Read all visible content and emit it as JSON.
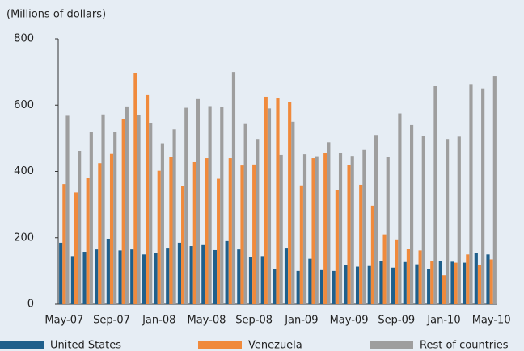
{
  "chart_data": {
    "type": "bar",
    "y_label": "(Millions of dollars)",
    "categories": [
      "May-07",
      null,
      null,
      null,
      "Sep-07",
      null,
      null,
      null,
      "Jan-08",
      null,
      null,
      null,
      "May-08",
      null,
      null,
      null,
      "Sep-08",
      null,
      null,
      null,
      "Jan-09",
      null,
      null,
      null,
      "May-09",
      null,
      null,
      null,
      "Sep-09",
      null,
      null,
      null,
      "Jan-10",
      null,
      null,
      null,
      "May-10"
    ],
    "series": [
      {
        "name": "United States",
        "color": "#1f5f8b",
        "values": [
          185,
          145,
          158,
          165,
          197,
          162,
          165,
          150,
          155,
          170,
          185,
          175,
          178,
          163,
          190,
          165,
          142,
          145,
          107,
          170,
          100,
          137,
          105,
          100,
          118,
          113,
          115,
          130,
          110,
          127,
          120,
          107,
          130,
          128,
          125,
          155,
          150
        ]
      },
      {
        "name": "Venezuela",
        "color": "#f08a3c",
        "values": [
          362,
          337,
          380,
          425,
          453,
          558,
          697,
          630,
          402,
          443,
          356,
          428,
          440,
          378,
          440,
          418,
          421,
          625,
          620,
          608,
          358,
          440,
          457,
          343,
          420,
          360,
          297,
          210,
          195,
          167,
          162,
          130,
          87,
          125,
          150,
          118,
          135
        ]
      },
      {
        "name": "Rest of countries",
        "color": "#9e9e9e",
        "values": [
          568,
          462,
          520,
          572,
          520,
          596,
          570,
          545,
          485,
          527,
          592,
          618,
          597,
          594,
          700,
          543,
          498,
          590,
          450,
          550,
          452,
          446,
          488,
          457,
          447,
          465,
          510,
          443,
          575,
          540,
          508,
          657,
          498,
          505,
          663,
          650,
          688
        ]
      }
    ],
    "ylim": [
      0,
      800
    ],
    "yticks": [
      0,
      200,
      400,
      600,
      800
    ]
  }
}
